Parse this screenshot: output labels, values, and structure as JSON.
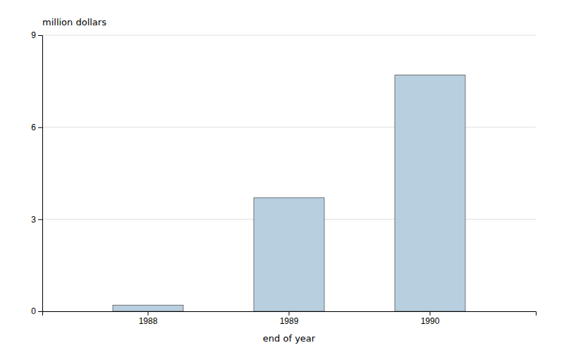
{
  "chart_data": {
    "type": "bar",
    "categories": [
      "1988",
      "1989",
      "1990"
    ],
    "values": [
      0.2,
      3.7,
      7.7
    ],
    "color": "#b8cfe0",
    "xlabel": "end of year",
    "ylabel": "million dollars",
    "ylim": [
      0,
      9
    ],
    "yticks": [
      0,
      3,
      6,
      9
    ],
    "grid": true
  }
}
